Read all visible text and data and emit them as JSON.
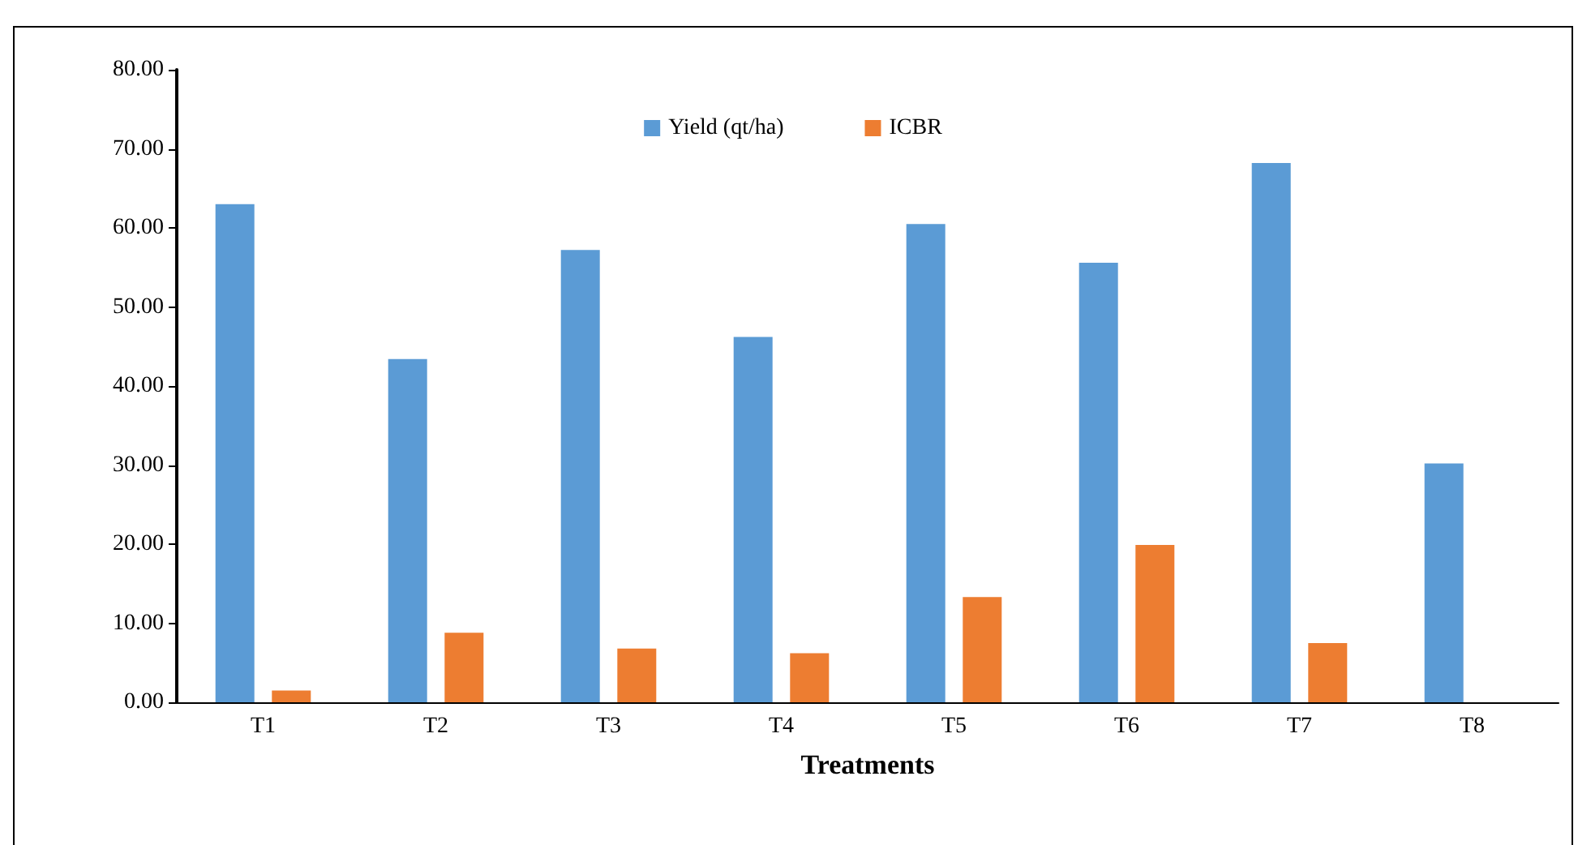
{
  "chart_data": {
    "type": "bar",
    "xlabel": "Treatments",
    "categories": [
      "T1",
      "T2",
      "T3",
      "T4",
      "T5",
      "T6",
      "T7",
      "T8"
    ],
    "series": [
      {
        "name": "Yield (qt/ha)",
        "color": "#5b9bd5",
        "values": [
          63.0,
          43.4,
          57.2,
          46.2,
          60.5,
          55.6,
          68.2,
          30.2
        ]
      },
      {
        "name": "ICBR",
        "color": "#ed7d31",
        "values": [
          1.5,
          8.8,
          6.8,
          6.2,
          13.3,
          19.9,
          7.5,
          0
        ]
      }
    ],
    "ylim": [
      0,
      80
    ],
    "yticks": [
      {
        "value": 0,
        "label": "0.00"
      },
      {
        "value": 10,
        "label": "10.00"
      },
      {
        "value": 20,
        "label": "20.00"
      },
      {
        "value": 30,
        "label": "30.00"
      },
      {
        "value": 40,
        "label": "40.00"
      },
      {
        "value": 50,
        "label": "50.00"
      },
      {
        "value": 60,
        "label": "60.00"
      },
      {
        "value": 70,
        "label": "70.00"
      },
      {
        "value": 80,
        "label": "80.00"
      }
    ],
    "grid": false,
    "legend": "top"
  }
}
